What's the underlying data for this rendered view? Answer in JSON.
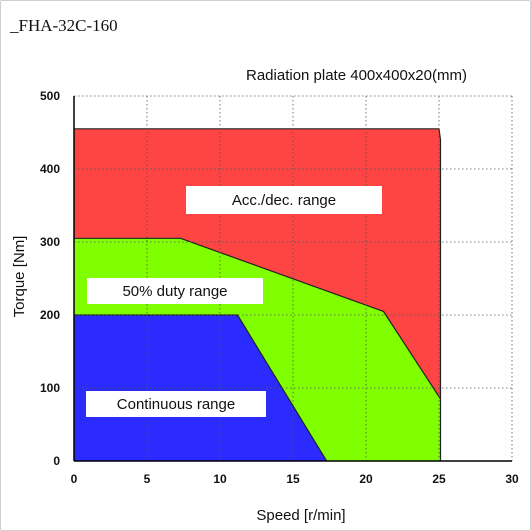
{
  "chart_data": {
    "type": "area",
    "title": "_FHA-32C-160",
    "annotation": "Radiation plate 400x400x20(mm)",
    "xlabel": "Speed [r/min]",
    "ylabel": "Torque [Nm]",
    "xlim": [
      0,
      30
    ],
    "ylim": [
      0,
      500
    ],
    "xticks": [
      0,
      5,
      10,
      15,
      20,
      25,
      30
    ],
    "yticks": [
      0,
      100,
      200,
      300,
      400,
      500
    ],
    "grid": true,
    "series": [
      {
        "name": "Acc./dec. range",
        "color": "#ff4444",
        "points": [
          [
            0,
            455
          ],
          [
            25,
            455
          ],
          [
            25.1,
            440
          ],
          [
            25.1,
            85
          ],
          [
            21.2,
            205
          ],
          [
            7.3,
            305
          ],
          [
            0,
            305
          ]
        ]
      },
      {
        "name": "50% duty range",
        "color": "#7fff00",
        "points": [
          [
            0,
            305
          ],
          [
            7.3,
            305
          ],
          [
            21.2,
            205
          ],
          [
            25.1,
            85
          ],
          [
            25.1,
            0
          ],
          [
            17.3,
            0
          ],
          [
            11.2,
            200
          ],
          [
            0,
            200
          ]
        ]
      },
      {
        "name": "Continuous range",
        "color": "#2b2bff",
        "points": [
          [
            0,
            200
          ],
          [
            11.2,
            200
          ],
          [
            17.3,
            0
          ],
          [
            0,
            0
          ]
        ]
      }
    ]
  }
}
